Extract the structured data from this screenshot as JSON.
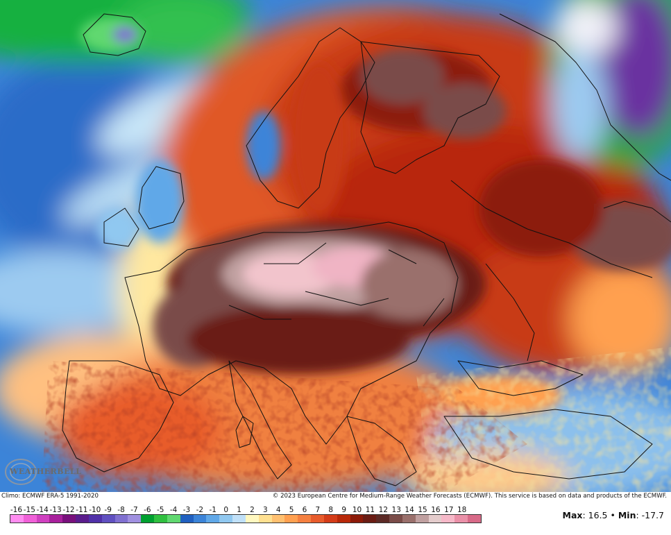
{
  "footer": {
    "climo_text": "Climo: ECMWF ERA-5 1991-2020",
    "copyright_text": "© 2023 European Centre for Medium-Range Weather Forecasts (ECMWF). This service is based on data and products of the ECMWF."
  },
  "logo": {
    "text": "WEATHERBELL"
  },
  "legend": {
    "ticks": [
      "-16",
      "-15",
      "-14",
      "-13",
      "-12",
      "-11",
      "-10",
      "-9",
      "-8",
      "-7",
      "-6",
      "-5",
      "-4",
      "-3",
      "-2",
      "-1",
      "0",
      "1",
      "2",
      "3",
      "4",
      "5",
      "6",
      "7",
      "8",
      "9",
      "10",
      "11",
      "12",
      "13",
      "14",
      "15",
      "16",
      "17",
      "18"
    ],
    "colors": [
      "#ff8cf0",
      "#f060d8",
      "#d040c0",
      "#a8209c",
      "#78107c",
      "#5a1c8c",
      "#5030a8",
      "#6050c0",
      "#8070d0",
      "#a090e0",
      "#00a030",
      "#30c040",
      "#60d870",
      "#2060c0",
      "#3c84d8",
      "#60a8e8",
      "#90c8f0",
      "#c0e0f8",
      "#fff8c0",
      "#ffe090",
      "#ffc070",
      "#ffa050",
      "#f58040",
      "#e85c2c",
      "#d43c18",
      "#b82808",
      "#8c1a08",
      "#6a1c14",
      "#5c2a26",
      "#7a4c48",
      "#9a706c",
      "#c0a0a0",
      "#e4cccc",
      "#f6b8c8",
      "#ea90a8",
      "#d86a88"
    ]
  },
  "stats": {
    "max_label": "Max",
    "max_value": ": 16.5",
    "separator": " • ",
    "min_label": "Min",
    "min_value": ": -17.7"
  }
}
